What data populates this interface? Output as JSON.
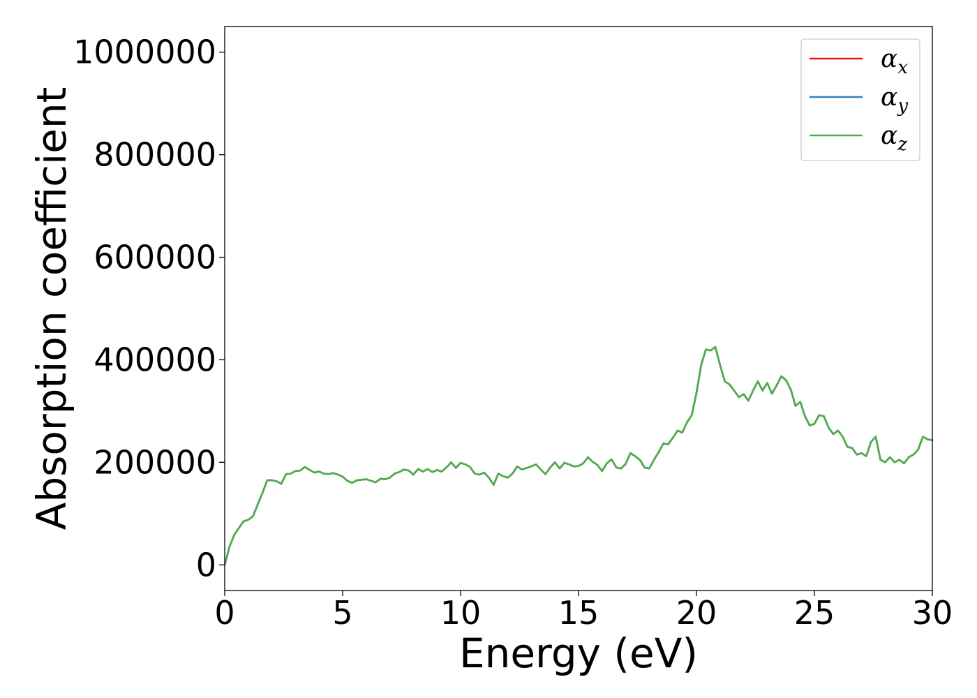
{
  "chart_data": {
    "type": "line",
    "title": "",
    "xlabel": "Energy (eV)",
    "ylabel": "Absorption coefficient",
    "xlim": [
      0,
      30
    ],
    "ylim": [
      -50000,
      1050000
    ],
    "xticks": [
      0,
      5,
      10,
      15,
      20,
      25,
      30
    ],
    "yticks": [
      0,
      200000,
      400000,
      600000,
      800000,
      1000000
    ],
    "xtick_labels": [
      "0",
      "5",
      "10",
      "15",
      "20",
      "25",
      "30"
    ],
    "ytick_labels": [
      "0",
      "200000",
      "400000",
      "600000",
      "800000",
      "1000000"
    ],
    "grid": false,
    "legend_position": "top-right",
    "series": [
      {
        "name": "α",
        "subscript": "x",
        "color": "#e41a1c"
      },
      {
        "name": "α",
        "subscript": "y",
        "color": "#377eb8"
      },
      {
        "name": "α",
        "subscript": "z",
        "color": "#4daf4a"
      }
    ],
    "x": [
      0,
      0.2,
      0.4,
      0.6,
      0.8,
      1.0,
      1.2,
      1.4,
      1.6,
      1.8,
      2.0,
      2.2,
      2.4,
      2.6,
      2.8,
      3.0,
      3.2,
      3.4,
      3.6,
      3.8,
      4.0,
      4.2,
      4.4,
      4.6,
      4.8,
      5.0,
      5.2,
      5.4,
      5.6,
      5.8,
      6.0,
      6.2,
      6.4,
      6.6,
      6.8,
      7.0,
      7.2,
      7.4,
      7.6,
      7.8,
      8.0,
      8.2,
      8.4,
      8.6,
      8.8,
      9.0,
      9.2,
      9.4,
      9.6,
      9.8,
      10.0,
      10.2,
      10.4,
      10.6,
      10.8,
      11.0,
      11.2,
      11.4,
      11.6,
      11.8,
      12.0,
      12.2,
      12.4,
      12.6,
      12.8,
      13.0,
      13.2,
      13.4,
      13.6,
      13.8,
      14.0,
      14.2,
      14.4,
      14.6,
      14.8,
      15.0,
      15.2,
      15.4,
      15.6,
      15.8,
      16.0,
      16.2,
      16.4,
      16.6,
      16.8,
      17.0,
      17.2,
      17.4,
      17.6,
      17.8,
      18.0,
      18.2,
      18.4,
      18.6,
      18.8,
      19.0,
      19.2,
      19.4,
      19.6,
      19.8,
      20.0,
      20.2,
      20.4,
      20.6,
      20.8,
      21.0,
      21.2,
      21.4,
      21.6,
      21.8,
      22.0,
      22.2,
      22.4,
      22.6,
      22.8,
      23.0,
      23.2,
      23.4,
      23.6,
      23.8,
      24.0,
      24.2,
      24.4,
      24.6,
      24.8,
      25.0,
      25.2,
      25.4,
      25.6,
      25.8,
      26.0,
      26.2,
      26.4,
      26.6,
      26.8,
      27.0,
      27.2,
      27.4,
      27.6,
      27.8,
      28.0,
      28.2,
      28.4,
      28.6,
      28.8,
      29.0,
      29.2,
      29.4,
      29.6,
      29.8,
      30.0
    ],
    "y": [
      0,
      35000,
      58000,
      72000,
      85000,
      88000,
      95000,
      118000,
      140000,
      165000,
      165000,
      163000,
      158000,
      177000,
      178000,
      183000,
      184000,
      191000,
      185000,
      180000,
      182000,
      178000,
      177000,
      179000,
      176000,
      172000,
      164000,
      160000,
      165000,
      166000,
      167000,
      164000,
      161000,
      168000,
      167000,
      170000,
      178000,
      181000,
      186000,
      184000,
      176000,
      187000,
      182000,
      187000,
      181000,
      185000,
      182000,
      190000,
      200000,
      189000,
      199000,
      196000,
      191000,
      178000,
      176000,
      180000,
      170000,
      156000,
      178000,
      173000,
      170000,
      178000,
      192000,
      186000,
      189000,
      192000,
      196000,
      186000,
      177000,
      190000,
      200000,
      188000,
      199000,
      196000,
      192000,
      193000,
      198000,
      210000,
      201000,
      195000,
      183000,
      198000,
      206000,
      190000,
      188000,
      197000,
      218000,
      212000,
      205000,
      190000,
      188000,
      205000,
      220000,
      237000,
      235000,
      248000,
      262000,
      258000,
      278000,
      292000,
      335000,
      390000,
      420000,
      418000,
      425000,
      390000,
      358000,
      352000,
      340000,
      327000,
      333000,
      320000,
      340000,
      358000,
      340000,
      355000,
      334000,
      350000,
      368000,
      360000,
      342000,
      310000,
      318000,
      290000,
      272000,
      275000,
      292000,
      290000,
      268000,
      255000,
      262000,
      250000,
      230000,
      228000,
      215000,
      218000,
      212000,
      240000,
      250000,
      205000,
      200000,
      210000,
      200000,
      205000,
      198000,
      210000,
      215000,
      225000,
      250000,
      245000,
      243000
    ]
  }
}
